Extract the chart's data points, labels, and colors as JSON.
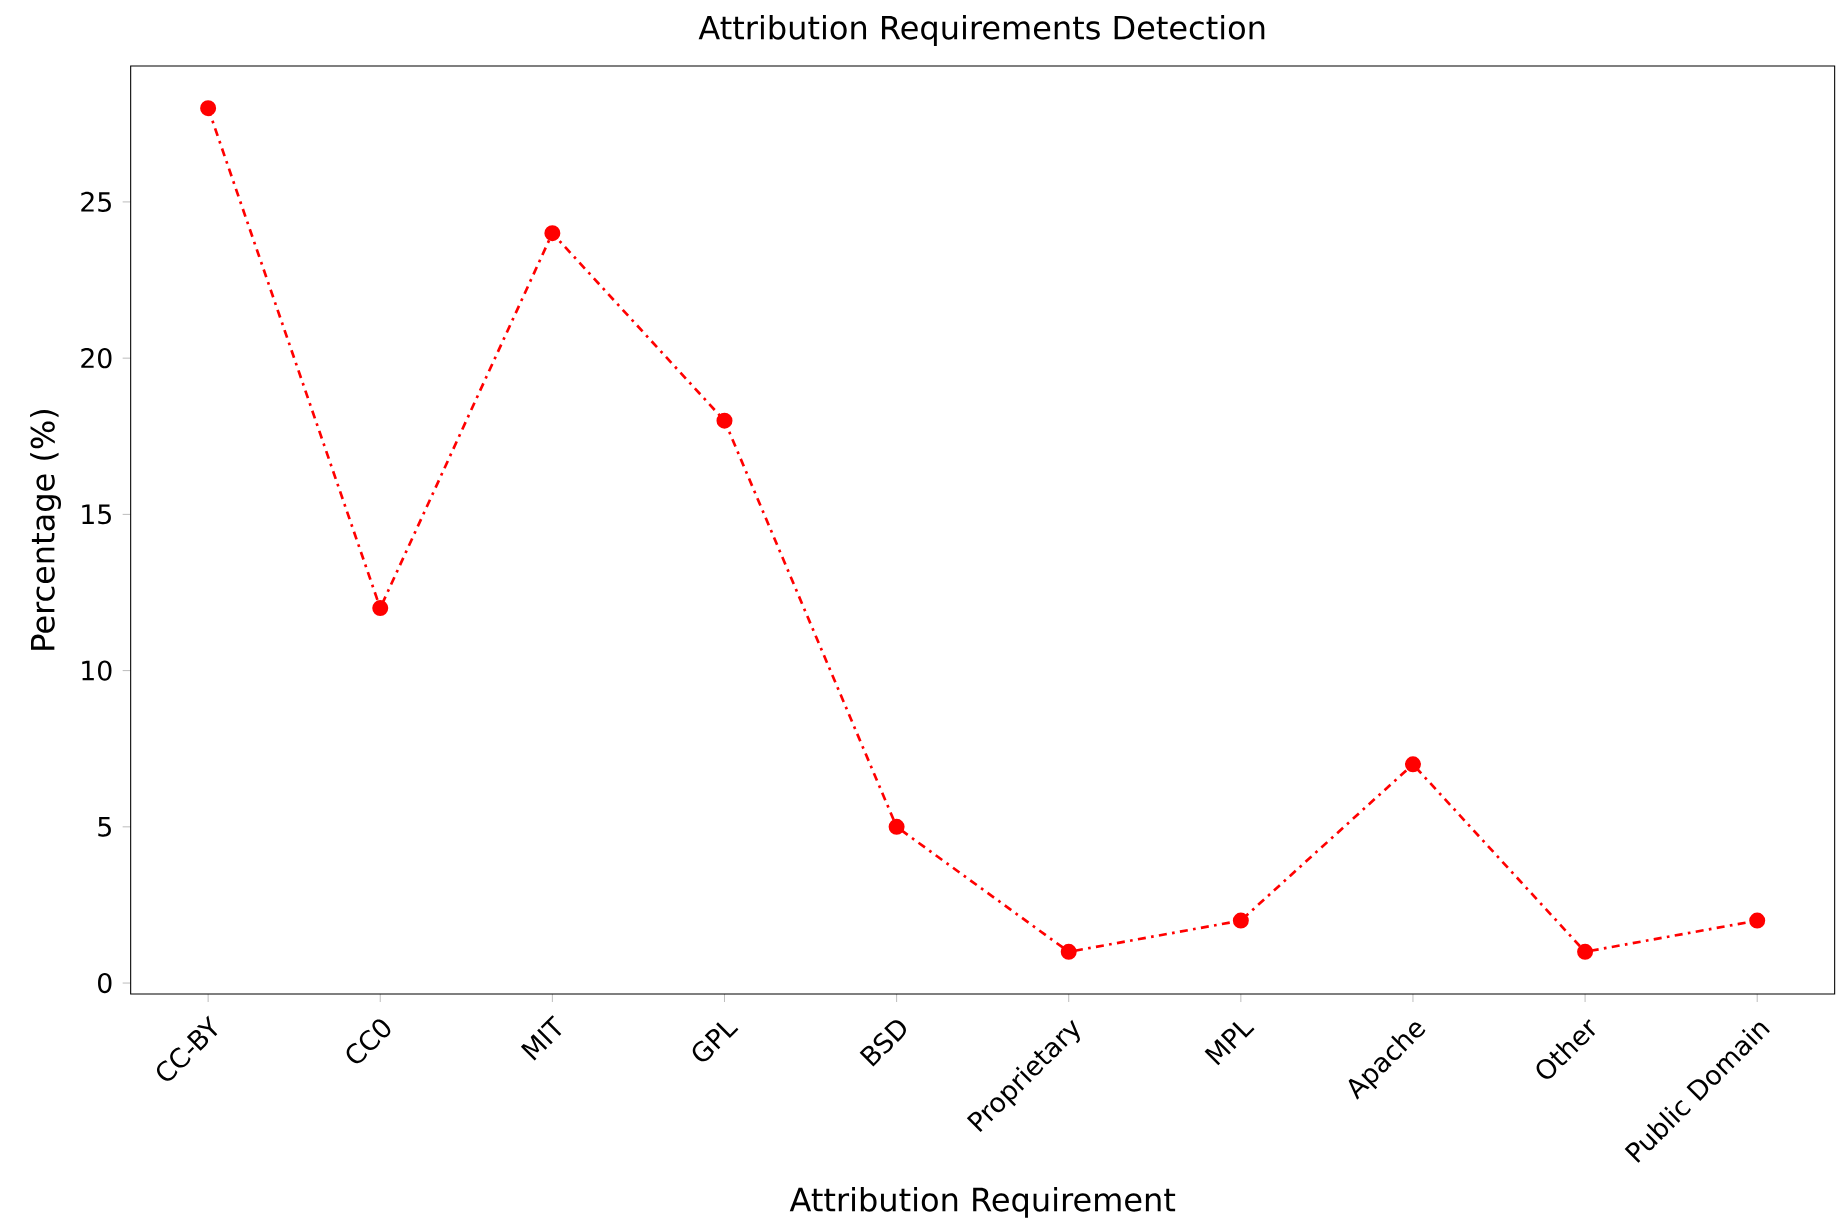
{
  "chart_data": {
    "type": "line",
    "title": "Attribution Requirements Detection",
    "xlabel": "Attribution Requirement",
    "ylabel": "Percentage (%)",
    "categories": [
      "CC-BY",
      "CC0",
      "MIT",
      "GPL",
      "BSD",
      "Proprietary",
      "MPL",
      "Apache",
      "Other",
      "Public Domain"
    ],
    "values": [
      28,
      12,
      24,
      18,
      5,
      1,
      2,
      7,
      1,
      2
    ],
    "color": "#ff0000",
    "marker": "circle",
    "line_style": "dashdot",
    "grid": false,
    "ylim": [
      -0.35,
      29.35
    ],
    "yticks": [
      0,
      5,
      10,
      15,
      20,
      25
    ]
  }
}
